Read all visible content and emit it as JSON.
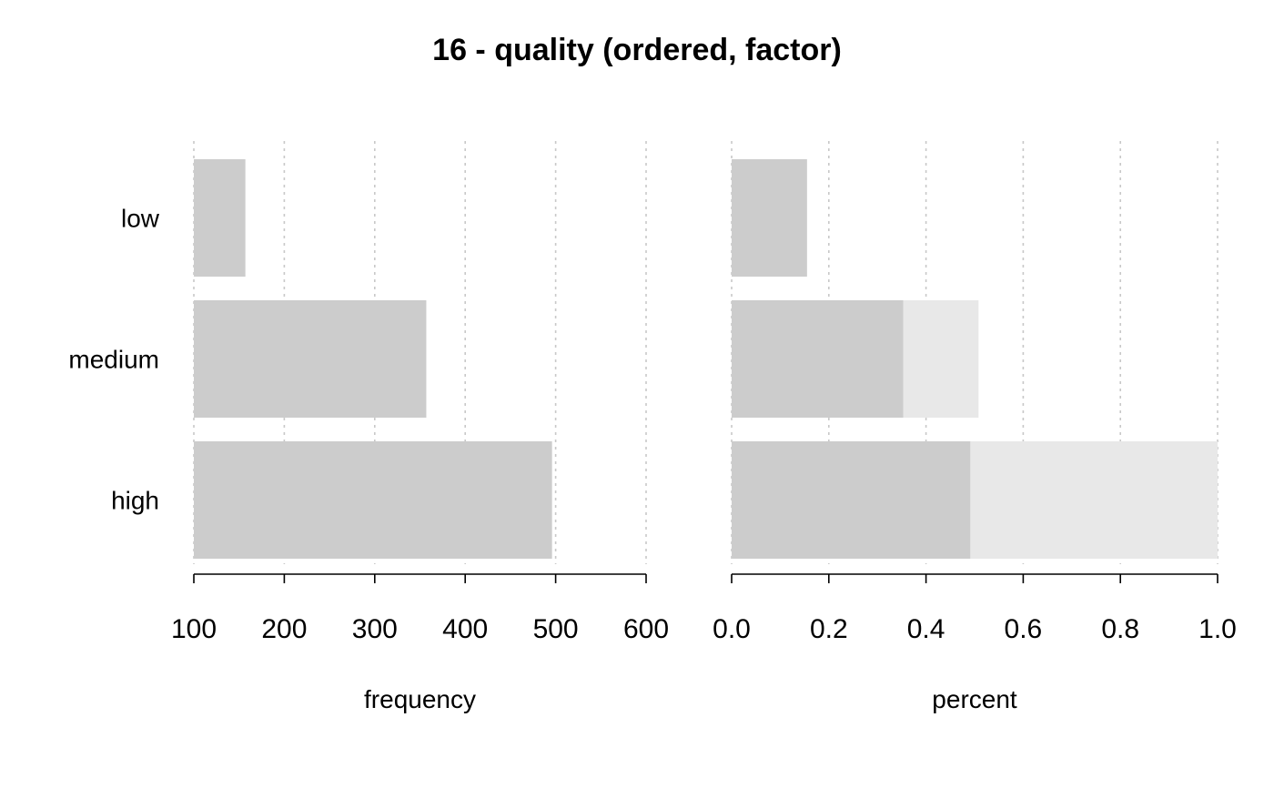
{
  "chart_data": [
    {
      "type": "bar",
      "orientation": "horizontal",
      "title": "16 - quality (ordered, factor)",
      "categories": [
        "low",
        "medium",
        "high"
      ],
      "values": [
        157,
        357,
        496
      ],
      "xlabel": "frequency",
      "xlim": [
        100,
        600
      ],
      "xticks": [
        "100",
        "200",
        "300",
        "400",
        "500",
        "600"
      ],
      "grid": "vertical dotted",
      "bar_color": "#cccccc"
    },
    {
      "type": "bar",
      "orientation": "horizontal",
      "stacked_cumulative": true,
      "categories": [
        "low",
        "medium",
        "high"
      ],
      "values": [
        0.155,
        0.353,
        0.491
      ],
      "cumulative": [
        0.155,
        0.508,
        1.0
      ],
      "xlabel": "percent",
      "xlim": [
        0,
        1
      ],
      "xticks": [
        "0.0",
        "0.2",
        "0.4",
        "0.6",
        "0.8",
        "1.0"
      ],
      "grid": "vertical dotted",
      "bar_color": "#cccccc",
      "cumulative_color": "#e8e8e8"
    }
  ],
  "grid_color": "#c8c8c8"
}
